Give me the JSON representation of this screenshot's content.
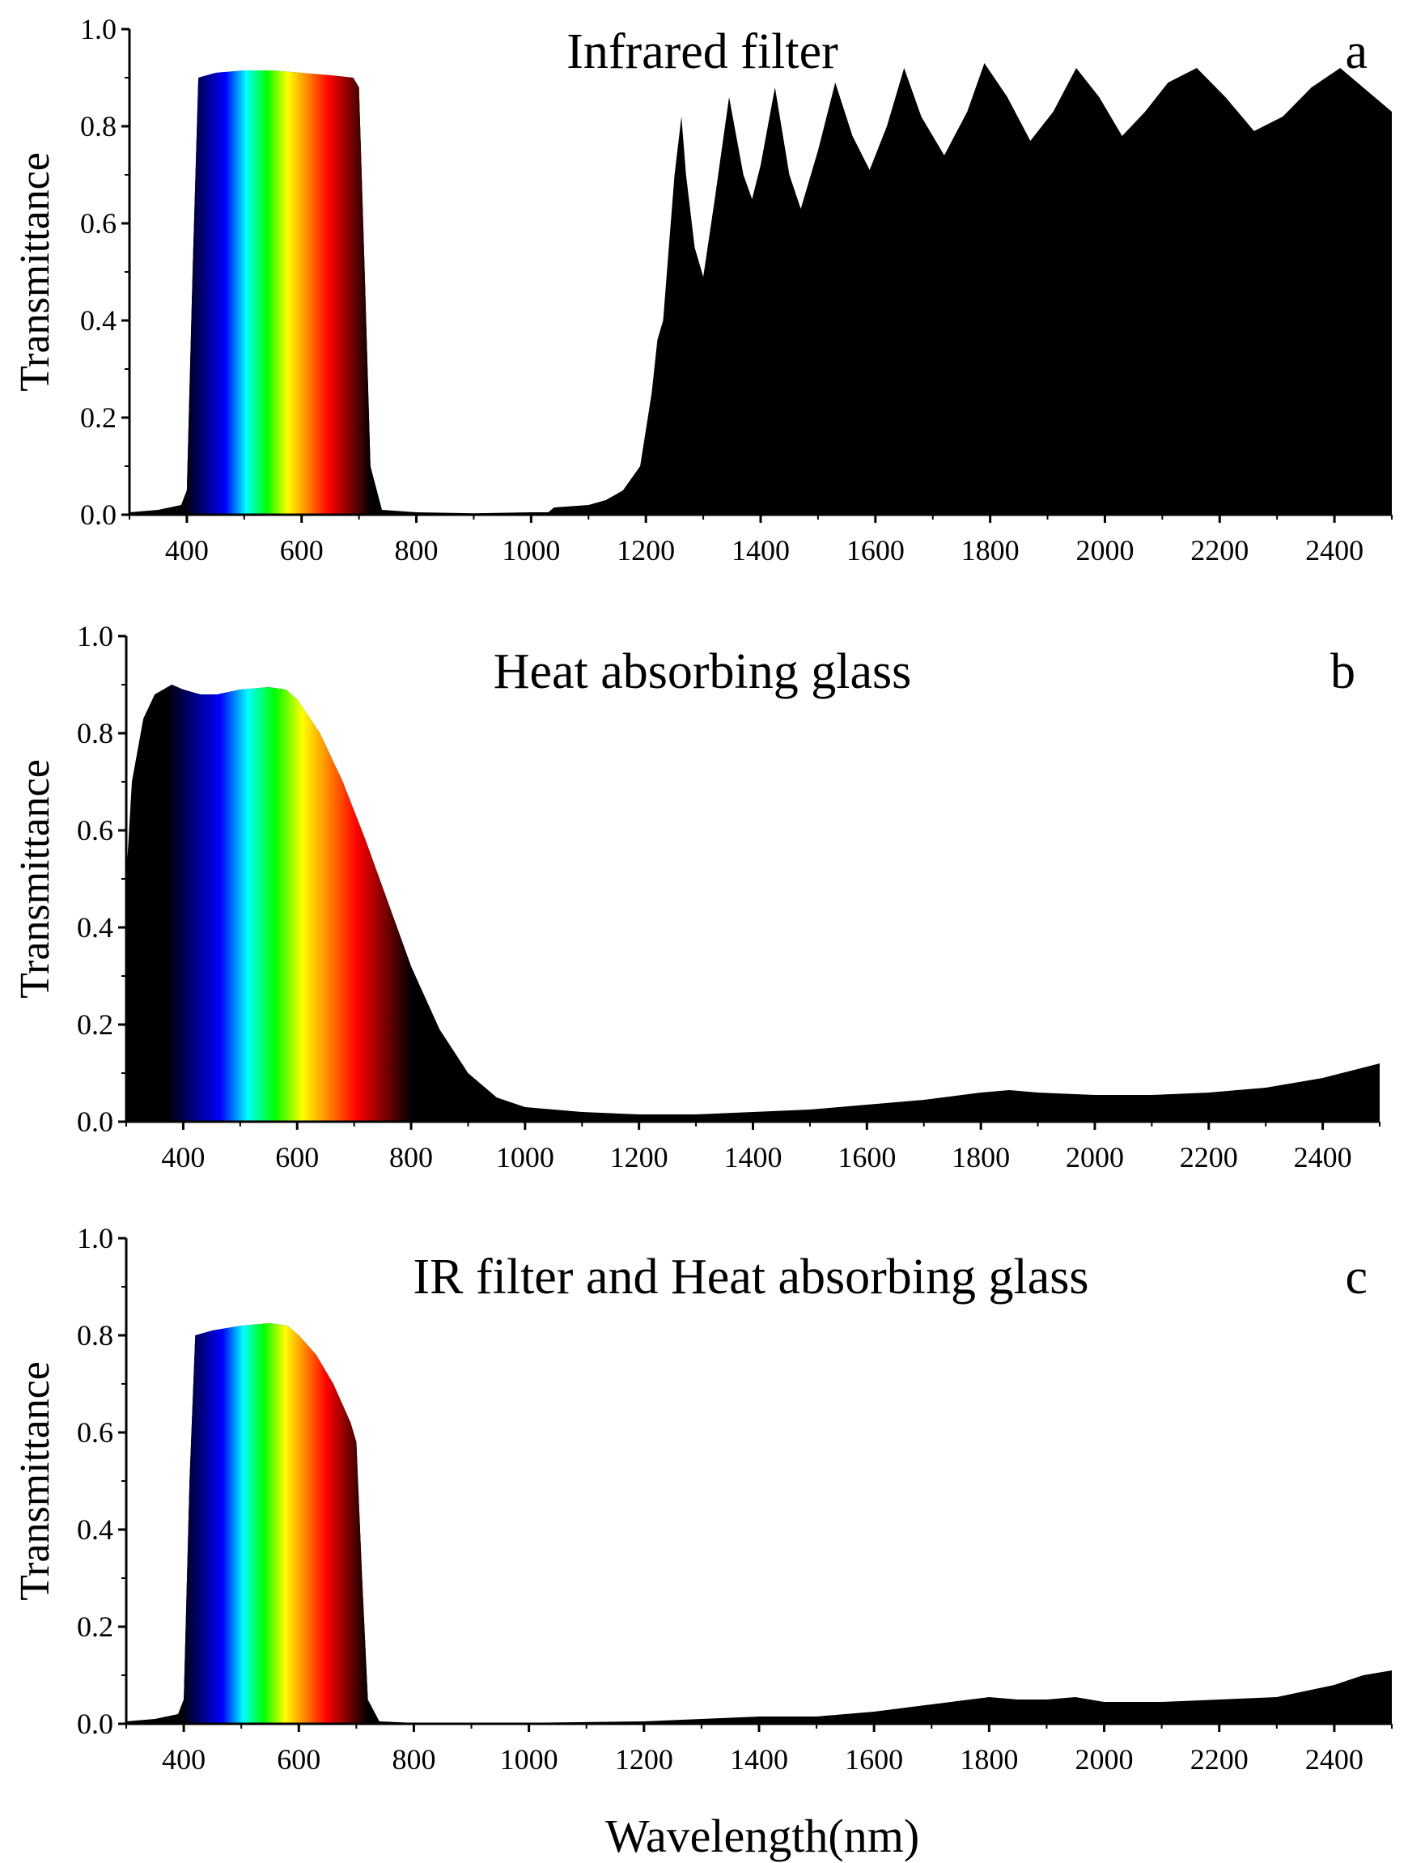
{
  "figure": {
    "xlabel": "Wavelength(nm)"
  },
  "colors": {
    "ink": "#000000",
    "background": "#ffffff",
    "spectrum_stops": [
      "#000000",
      "#000080",
      "#0000ff",
      "#00ffff",
      "#00ff00",
      "#ffff00",
      "#ff8000",
      "#ff0000",
      "#800000",
      "#000000"
    ]
  },
  "chart_data": [
    {
      "type": "area",
      "panel": "a",
      "title": "Infrared filter",
      "ylabel": "Transmittance",
      "xlim": [
        300,
        2500
      ],
      "ylim": [
        0,
        1.0
      ],
      "xticks": [
        400,
        600,
        800,
        1000,
        1200,
        1400,
        1600,
        1800,
        2000,
        2200,
        2400
      ],
      "yticks": [
        "0.0",
        "0.2",
        "0.4",
        "0.6",
        "0.8",
        "1.0"
      ],
      "fill": "visible band in spectrum colours, remainder black",
      "series": [
        {
          "x": [
            300,
            350,
            390,
            400,
            410,
            420,
            450,
            500,
            550,
            600,
            650,
            690,
            700,
            710,
            720,
            740,
            800,
            900,
            1000,
            1030,
            1040,
            1100,
            1130,
            1160,
            1190,
            1210,
            1220,
            1230,
            1240,
            1250,
            1262,
            1270,
            1285,
            1300,
            1320,
            1345,
            1370,
            1385,
            1400,
            1425,
            1450,
            1470,
            1500,
            1530,
            1560,
            1590,
            1620,
            1650,
            1680,
            1720,
            1760,
            1790,
            1830,
            1870,
            1910,
            1950,
            1990,
            2030,
            2070,
            2110,
            2160,
            2210,
            2260,
            2310,
            2360,
            2410,
            2450,
            2500
          ],
          "y": [
            0.005,
            0.01,
            0.02,
            0.05,
            0.5,
            0.9,
            0.91,
            0.915,
            0.915,
            0.91,
            0.905,
            0.9,
            0.88,
            0.5,
            0.1,
            0.01,
            0.005,
            0.003,
            0.005,
            0.005,
            0.015,
            0.02,
            0.03,
            0.05,
            0.1,
            0.25,
            0.36,
            0.4,
            0.55,
            0.7,
            0.82,
            0.7,
            0.55,
            0.49,
            0.65,
            0.86,
            0.7,
            0.65,
            0.72,
            0.88,
            0.7,
            0.63,
            0.75,
            0.89,
            0.78,
            0.71,
            0.8,
            0.92,
            0.82,
            0.74,
            0.83,
            0.93,
            0.86,
            0.77,
            0.83,
            0.92,
            0.86,
            0.78,
            0.83,
            0.89,
            0.92,
            0.86,
            0.79,
            0.82,
            0.88,
            0.92,
            0.88,
            0.83
          ]
        }
      ]
    },
    {
      "type": "area",
      "panel": "b",
      "title": "Heat absorbing glass",
      "ylabel": "Transmittance",
      "xlim": [
        300,
        2500
      ],
      "ylim": [
        0,
        1.0
      ],
      "xticks": [
        400,
        600,
        800,
        1000,
        1200,
        1400,
        1600,
        1800,
        2000,
        2200,
        2400
      ],
      "yticks": [
        "0.0",
        "0.2",
        "0.4",
        "0.6",
        "0.8",
        "1.0"
      ],
      "fill": "visible band in spectrum colours, remainder black",
      "series": [
        {
          "x": [
            300,
            310,
            330,
            350,
            380,
            400,
            430,
            460,
            500,
            550,
            580,
            600,
            640,
            680,
            720,
            760,
            800,
            850,
            900,
            950,
            1000,
            1050,
            1100,
            1200,
            1300,
            1400,
            1500,
            1600,
            1700,
            1800,
            1850,
            1900,
            2000,
            2100,
            2200,
            2300,
            2400,
            2450,
            2500
          ],
          "y": [
            0.5,
            0.7,
            0.83,
            0.88,
            0.9,
            0.89,
            0.88,
            0.88,
            0.89,
            0.895,
            0.89,
            0.87,
            0.8,
            0.7,
            0.58,
            0.45,
            0.32,
            0.19,
            0.1,
            0.05,
            0.03,
            0.025,
            0.02,
            0.015,
            0.015,
            0.02,
            0.025,
            0.035,
            0.045,
            0.06,
            0.065,
            0.06,
            0.055,
            0.055,
            0.06,
            0.07,
            0.09,
            0.105,
            0.12
          ]
        }
      ]
    },
    {
      "type": "area",
      "panel": "c",
      "title": "IR filter and Heat absorbing glass",
      "ylabel": "Transmittance",
      "xlim": [
        300,
        2500
      ],
      "ylim": [
        0,
        1.0
      ],
      "xticks": [
        400,
        600,
        800,
        1000,
        1200,
        1400,
        1600,
        1800,
        2000,
        2200,
        2400
      ],
      "yticks": [
        "0.0",
        "0.2",
        "0.4",
        "0.6",
        "0.8",
        "1.0"
      ],
      "fill": "visible band in spectrum colours, remainder black",
      "series": [
        {
          "x": [
            300,
            350,
            390,
            400,
            410,
            420,
            450,
            500,
            550,
            580,
            600,
            630,
            660,
            690,
            700,
            710,
            720,
            740,
            800,
            1000,
            1200,
            1300,
            1400,
            1500,
            1550,
            1600,
            1700,
            1800,
            1850,
            1900,
            1950,
            2000,
            2100,
            2200,
            2300,
            2400,
            2450,
            2500
          ],
          "y": [
            0.005,
            0.01,
            0.02,
            0.05,
            0.5,
            0.8,
            0.81,
            0.82,
            0.825,
            0.82,
            0.8,
            0.76,
            0.7,
            0.62,
            0.58,
            0.3,
            0.05,
            0.005,
            0.002,
            0.002,
            0.005,
            0.01,
            0.015,
            0.015,
            0.02,
            0.025,
            0.04,
            0.055,
            0.05,
            0.05,
            0.055,
            0.045,
            0.045,
            0.05,
            0.055,
            0.08,
            0.1,
            0.11
          ]
        }
      ]
    }
  ]
}
